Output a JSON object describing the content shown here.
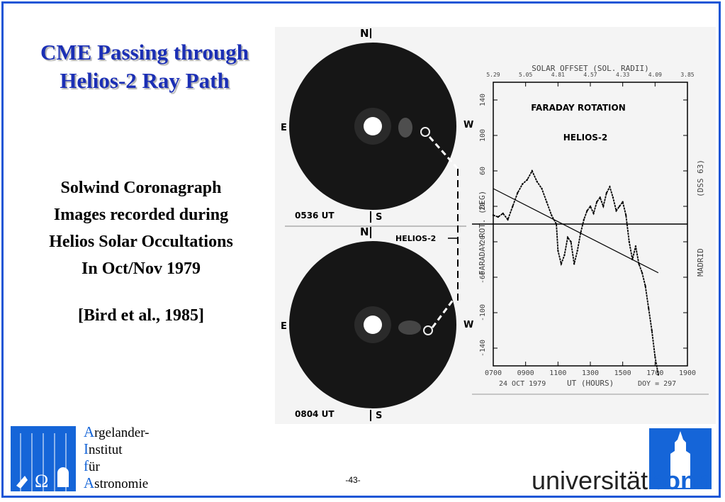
{
  "slide": {
    "title_lines": [
      "CME Passing through",
      "Helios-2 Ray Path"
    ],
    "body_lines": [
      "Solwind Coronagraph",
      "Images recorded during",
      "Helios Solar Occultations",
      "In Oct/Nov 1979"
    ],
    "reference": "[Bird et al., 1985]",
    "page_number": "-43-"
  },
  "colors": {
    "frame": "#1a56d6",
    "title": "#1b2fb5",
    "logo_blue": "#1565d8"
  },
  "figure": {
    "top_image": {
      "north": "N",
      "south": "S",
      "east": "E",
      "west": "W",
      "time": "0536 UT"
    },
    "bottom_image": {
      "north": "N",
      "south": "S",
      "east": "E",
      "west": "W",
      "time": "0804 UT"
    },
    "helios_label": "HELIOS-2"
  },
  "chart_data": {
    "type": "line",
    "title": "FARADAY ROTATION",
    "subtitle": "HELIOS-2",
    "top_axis_label": "SOLAR OFFSET (SOL. RADII)",
    "top_ticks": [
      "5.29",
      "5.05",
      "4.81",
      "4.57",
      "4.33",
      "4.09",
      "3.85"
    ],
    "xlabel": "UT (HOURS)",
    "x_ticks": [
      "0700",
      "0900",
      "1100",
      "1300",
      "1500",
      "1700",
      "1900"
    ],
    "xlim": [
      7,
      19
    ],
    "ylabel": "FARADAY ROT. (DEG)",
    "y_ticks": [
      "140",
      "100",
      "60",
      "20",
      "-20",
      "-60",
      "-100",
      "-140"
    ],
    "ylim": [
      -160,
      160
    ],
    "right_labels": [
      "(DSS 63)",
      "MADRID"
    ],
    "date": "24 OCT 1979",
    "doy": "DOY =   297",
    "series": [
      {
        "values_x": [
          7.0,
          7.3,
          7.6,
          7.9,
          8.2,
          8.5,
          8.8,
          9.1,
          9.4,
          9.7,
          10.0,
          10.3,
          10.6,
          10.9,
          11.0,
          11.2,
          11.4,
          11.6,
          11.8,
          12.0,
          12.2,
          12.4,
          12.6,
          12.8,
          13.0,
          13.2,
          13.4,
          13.6,
          13.8,
          14.0,
          14.2,
          14.4,
          14.6,
          14.8,
          15.0,
          15.2,
          15.4,
          15.6,
          15.8,
          16.0,
          16.2,
          16.4,
          16.6,
          16.8,
          17.0,
          17.2
        ],
        "values_y": [
          10,
          8,
          12,
          5,
          20,
          35,
          45,
          50,
          60,
          48,
          40,
          25,
          10,
          0,
          -30,
          -45,
          -35,
          -15,
          -20,
          -45,
          -30,
          -10,
          5,
          15,
          20,
          12,
          25,
          30,
          20,
          35,
          42,
          30,
          15,
          20,
          25,
          10,
          -20,
          -40,
          -25,
          -45,
          -55,
          -70,
          -95,
          -120,
          -150,
          -170
        ]
      }
    ],
    "trend": {
      "x": [
        7.0,
        17.2
      ],
      "y": [
        40,
        -55
      ]
    },
    "zero_line": 0
  }
}
